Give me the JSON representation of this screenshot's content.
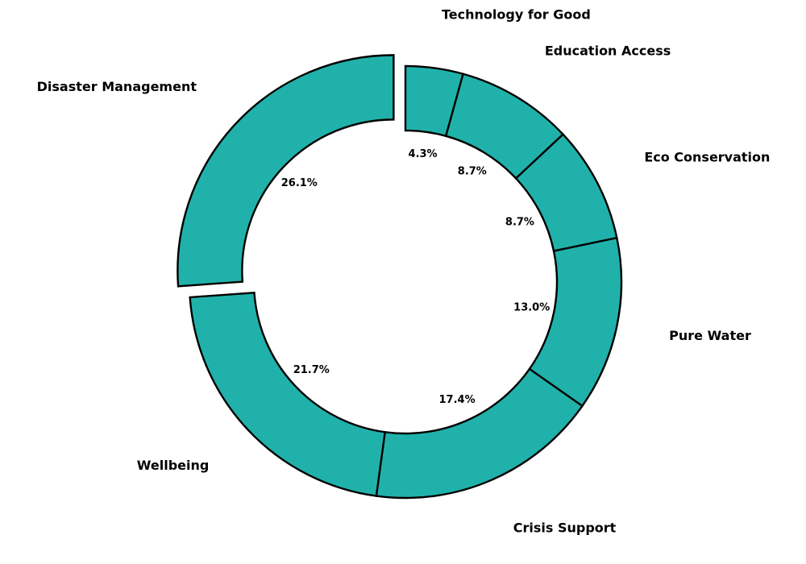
{
  "chart_data": {
    "type": "pie",
    "style": "donut",
    "title": "",
    "color": "#20b2aa",
    "edge_color": "#000000",
    "exploded": "Disaster Management",
    "categories": [
      "Technology for Good",
      "Education Access",
      "Eco Conservation",
      "Pure Water",
      "Crisis Support",
      "Wellbeing",
      "Disaster Management"
    ],
    "values": [
      4.3,
      8.7,
      8.7,
      13.0,
      17.4,
      21.7,
      26.1
    ],
    "percent_labels": [
      "4.3%",
      "8.7%",
      "8.7%",
      "13.0%",
      "17.4%",
      "21.7%",
      "26.1%"
    ]
  }
}
